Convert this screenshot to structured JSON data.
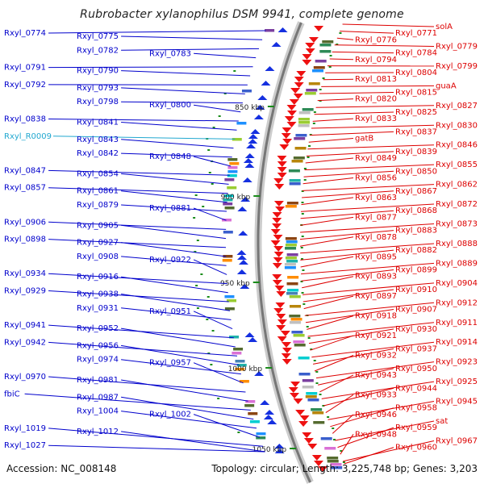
{
  "title": "Rubrobacter xylanophilus DSM 9941, complete genome",
  "footer": {
    "accession": "Accession: NC_008148",
    "topology": "Topology: circular; Length: 3,225,748 bp; Genes: 3,203"
  },
  "colors": {
    "left_label": "#0000cc",
    "right_label": "#dd0000",
    "rna_label": "#22a8d0",
    "backbone": "#777777",
    "tick": "#1a8c1a"
  },
  "scale_ticks": [
    "850 kbp",
    "900 kbp",
    "950 kbp",
    "1000 kbp",
    "1050 kbp"
  ],
  "left_labels": [
    {
      "text": "Rxyl_0774"
    },
    {
      "text": "Rxyl_0775"
    },
    {
      "text": "Rxyl_0782"
    },
    {
      "text": "Rxyl_0783"
    },
    {
      "text": "Rxyl_0791"
    },
    {
      "text": "Rxyl_0790"
    },
    {
      "text": "Rxyl_0792"
    },
    {
      "text": "Rxyl_0793"
    },
    {
      "text": "Rxyl_0798"
    },
    {
      "text": "Rxyl_0800"
    },
    {
      "text": "Rxyl_0838"
    },
    {
      "text": "Rxyl_0841"
    },
    {
      "text": "Rxyl_R0009",
      "rna": true
    },
    {
      "text": "Rxyl_0843"
    },
    {
      "text": "Rxyl_0842"
    },
    {
      "text": "Rxyl_0848"
    },
    {
      "text": "Rxyl_0847"
    },
    {
      "text": "Rxyl_0854"
    },
    {
      "text": "Rxyl_0857"
    },
    {
      "text": "Rxyl_0861"
    },
    {
      "text": "Rxyl_0879"
    },
    {
      "text": "Rxyl_0881"
    },
    {
      "text": "Rxyl_0906"
    },
    {
      "text": "Rxyl_0905"
    },
    {
      "text": "Rxyl_0898"
    },
    {
      "text": "Rxyl_0927"
    },
    {
      "text": "Rxyl_0908"
    },
    {
      "text": "Rxyl_0922"
    },
    {
      "text": "Rxyl_0934"
    },
    {
      "text": "Rxyl_0916"
    },
    {
      "text": "Rxyl_0929"
    },
    {
      "text": "Rxyl_0938"
    },
    {
      "text": "Rxyl_0931"
    },
    {
      "text": "Rxyl_0951"
    },
    {
      "text": "Rxyl_0941"
    },
    {
      "text": "Rxyl_0952"
    },
    {
      "text": "Rxyl_0942"
    },
    {
      "text": "Rxyl_0956"
    },
    {
      "text": "Rxyl_0974"
    },
    {
      "text": "Rxyl_0957"
    },
    {
      "text": "Rxyl_0970"
    },
    {
      "text": "Rxyl_0981"
    },
    {
      "text": "fbiC"
    },
    {
      "text": "Rxyl_0987"
    },
    {
      "text": "Rxyl_1004"
    },
    {
      "text": "Rxyl_1002"
    },
    {
      "text": "Rxyl_1019"
    },
    {
      "text": "Rxyl_1012"
    },
    {
      "text": "Rxyl_1027"
    }
  ],
  "right_labels": [
    {
      "text": "solA"
    },
    {
      "text": "Rxyl_0771"
    },
    {
      "text": "Rxyl_0776"
    },
    {
      "text": "Rxyl_0779"
    },
    {
      "text": "Rxyl_0784"
    },
    {
      "text": "Rxyl_0794"
    },
    {
      "text": "Rxyl_0799"
    },
    {
      "text": "Rxyl_0804"
    },
    {
      "text": "Rxyl_0813"
    },
    {
      "text": "guaA"
    },
    {
      "text": "Rxyl_0815"
    },
    {
      "text": "Rxyl_0820"
    },
    {
      "text": "Rxyl_0827"
    },
    {
      "text": "Rxyl_0825"
    },
    {
      "text": "Rxyl_0833"
    },
    {
      "text": "Rxyl_0830"
    },
    {
      "text": "Rxyl_0837"
    },
    {
      "text": "gatB"
    },
    {
      "text": "Rxyl_0846"
    },
    {
      "text": "Rxyl_0839"
    },
    {
      "text": "Rxyl_0849"
    },
    {
      "text": "Rxyl_0855"
    },
    {
      "text": "Rxyl_0850"
    },
    {
      "text": "Rxyl_0856"
    },
    {
      "text": "Rxyl_0862"
    },
    {
      "text": "Rxyl_0867"
    },
    {
      "text": "Rxyl_0863"
    },
    {
      "text": "Rxyl_0872"
    },
    {
      "text": "Rxyl_0868"
    },
    {
      "text": "Rxyl_0877"
    },
    {
      "text": "Rxyl_0873"
    },
    {
      "text": "Rxyl_0883"
    },
    {
      "text": "Rxyl_0878"
    },
    {
      "text": "Rxyl_0888"
    },
    {
      "text": "Rxyl_0882"
    },
    {
      "text": "Rxyl_0895"
    },
    {
      "text": "Rxyl_0889"
    },
    {
      "text": "Rxyl_0899"
    },
    {
      "text": "Rxyl_0893"
    },
    {
      "text": "Rxyl_0904"
    },
    {
      "text": "Rxyl_0910"
    },
    {
      "text": "Rxyl_0897"
    },
    {
      "text": "Rxyl_0912"
    },
    {
      "text": "Rxyl_0907"
    },
    {
      "text": "Rxyl_0918"
    },
    {
      "text": "Rxyl_0911"
    },
    {
      "text": "Rxyl_0930"
    },
    {
      "text": "Rxyl_0921"
    },
    {
      "text": "Rxyl_0914"
    },
    {
      "text": "Rxyl_0937"
    },
    {
      "text": "Rxyl_0932"
    },
    {
      "text": "Rxyl_0923"
    },
    {
      "text": "Rxyl_0950"
    },
    {
      "text": "Rxyl_0943"
    },
    {
      "text": "Rxyl_0925"
    },
    {
      "text": "Rxyl_0944"
    },
    {
      "text": "Rxyl_0933"
    },
    {
      "text": "Rxyl_0945"
    },
    {
      "text": "Rxyl_0958"
    },
    {
      "text": "Rxyl_0946"
    },
    {
      "text": "sat"
    },
    {
      "text": "Rxyl_0959"
    },
    {
      "text": "Rxyl_0948"
    },
    {
      "text": "Rxyl_0967"
    },
    {
      "text": "Rxyl_0960"
    }
  ]
}
